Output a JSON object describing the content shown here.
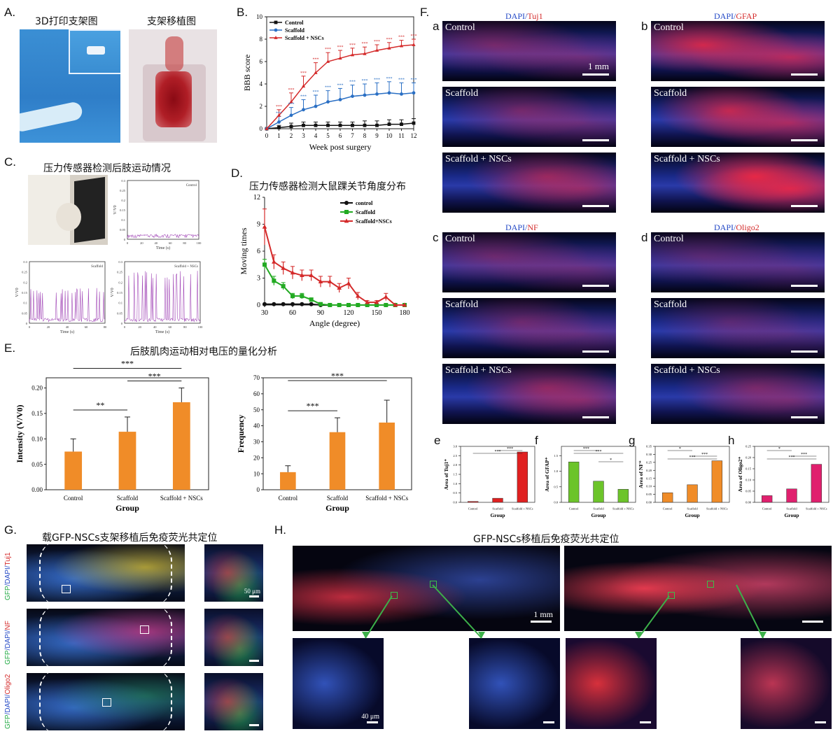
{
  "panelA": {
    "label": "A.",
    "photo1_title": "3D打印支架图",
    "photo2_title": "支架移植图"
  },
  "panelB": {
    "label": "B.",
    "chart_data": {
      "type": "line",
      "xlabel": "Week post surgery",
      "ylabel": "BBB score",
      "xlim": [
        0,
        12
      ],
      "ylim": [
        0,
        10
      ],
      "xticks": [
        0,
        1,
        2,
        3,
        4,
        5,
        6,
        7,
        8,
        9,
        10,
        11,
        12
      ],
      "yticks": [
        0,
        2,
        4,
        6,
        8,
        10
      ],
      "legend_position": "top-left",
      "x": [
        0,
        1,
        2,
        3,
        4,
        5,
        6,
        7,
        8,
        9,
        10,
        11,
        12
      ],
      "series": [
        {
          "name": "Control",
          "color": "#111111",
          "marker": "square",
          "values": [
            0,
            0.1,
            0.2,
            0.3,
            0.3,
            0.3,
            0.3,
            0.3,
            0.3,
            0.3,
            0.4,
            0.4,
            0.5
          ],
          "err": [
            0,
            0.2,
            0.3,
            0.3,
            0.3,
            0.3,
            0.3,
            0.3,
            0.4,
            0.4,
            0.4,
            0.4,
            0.4
          ]
        },
        {
          "name": "Scaffold",
          "color": "#2a6fc4",
          "marker": "circle",
          "values": [
            0,
            0.6,
            1.2,
            1.7,
            2.0,
            2.4,
            2.6,
            2.9,
            3.0,
            3.1,
            3.2,
            3.1,
            3.2
          ],
          "err": [
            0,
            0.5,
            0.7,
            0.9,
            1.0,
            1.0,
            1.0,
            1.0,
            1.0,
            1.0,
            1.0,
            1.0,
            0.9
          ]
        },
        {
          "name": "Scaffold + NSCs",
          "color": "#d42a2a",
          "marker": "triangle",
          "values": [
            0,
            1.2,
            2.4,
            3.8,
            5.0,
            6.0,
            6.3,
            6.6,
            6.7,
            7.0,
            7.2,
            7.4,
            7.5
          ],
          "err": [
            0,
            0.5,
            0.8,
            0.9,
            0.9,
            0.8,
            0.7,
            0.6,
            0.6,
            0.5,
            0.5,
            0.5,
            0.5
          ]
        }
      ]
    }
  },
  "panelC": {
    "label": "C.",
    "title": "压力传感器检测后肢运动情况",
    "axis_x": "Time (s)",
    "axis_y": "V/V0",
    "plots": [
      {
        "name": "Control",
        "yticks": [
          "0.3",
          "0.25",
          "0.2",
          "0.15",
          "0.1",
          "0.05",
          "0"
        ],
        "xticks": [
          "0",
          "20",
          "40",
          "60",
          "80",
          "100"
        ]
      },
      {
        "name": "Scaffold",
        "yticks": [
          "0.3",
          "0.25",
          "0.2",
          "0.15",
          "0.1",
          "0.05",
          "0"
        ],
        "xticks": [
          "0",
          "20",
          "40",
          "60",
          "80"
        ]
      },
      {
        "name": "Scaffold + NSCs",
        "yticks": [
          "0.3",
          "0.25",
          "0.2",
          "0.15",
          "0.1",
          "0.05",
          "0"
        ],
        "xticks": [
          "0",
          "20",
          "40",
          "60",
          "80",
          "100"
        ]
      }
    ]
  },
  "panelD": {
    "label": "D.",
    "title": "压力传感器检测大鼠踝关节角度分布",
    "chart_data": {
      "type": "line",
      "xlabel": "Angle (degree)",
      "ylabel": "Moving times",
      "xlim": [
        30,
        180
      ],
      "ylim": [
        0,
        12
      ],
      "xticks": [
        30,
        60,
        90,
        120,
        150,
        180
      ],
      "yticks": [
        0,
        3,
        6,
        9,
        12
      ],
      "legend_position": "top-right",
      "x": [
        30,
        40,
        50,
        60,
        70,
        80,
        90,
        100,
        110,
        120,
        130,
        140,
        150,
        160,
        170,
        180
      ],
      "series": [
        {
          "name": "control",
          "color": "#111111",
          "marker": "circle",
          "values": [
            0.1,
            0.1,
            0.1,
            0.1,
            0.1,
            0.1,
            0,
            0,
            0,
            0,
            0,
            0,
            0,
            0,
            0,
            0
          ]
        },
        {
          "name": "Scaffold",
          "color": "#22aa22",
          "marker": "square",
          "values": [
            4.5,
            2.7,
            2.1,
            1.0,
            1.0,
            0.6,
            0.1,
            0,
            0,
            0,
            0,
            0,
            0,
            0,
            0,
            0
          ],
          "err": [
            0.6,
            0.5,
            0.4,
            0.3,
            0.3,
            0.2,
            0.1,
            0,
            0,
            0,
            0,
            0,
            0,
            0,
            0,
            0
          ]
        },
        {
          "name": "Scaffold+NSCs",
          "color": "#d42a2a",
          "marker": "triangle",
          "values": [
            8.7,
            4.8,
            4.1,
            3.6,
            3.3,
            3.3,
            2.6,
            2.6,
            1.9,
            2.4,
            1.0,
            0.3,
            0.3,
            0.9,
            0,
            0
          ],
          "err": [
            2.0,
            0.8,
            0.7,
            0.7,
            0.6,
            0.6,
            0.6,
            0.6,
            0.5,
            0.6,
            0.4,
            0.2,
            0.2,
            0.4,
            0,
            0
          ]
        }
      ]
    }
  },
  "panelE": {
    "label": "E.",
    "title": "后肢肌肉运动相对电压的量化分析",
    "chart_data": [
      {
        "type": "bar",
        "categories": [
          "Control",
          "Scaffold",
          "Scaffold + NSCs"
        ],
        "values": [
          0.075,
          0.114,
          0.172
        ],
        "err": [
          0.025,
          0.029,
          0.028
        ],
        "ylabel": "Intensity (V/V0)",
        "xlabel": "Group",
        "ylim": [
          0,
          0.22
        ],
        "yticks": [
          "0.00",
          "0.05",
          "0.10",
          "0.15",
          "0.20"
        ],
        "ytick_values": [
          0,
          0.05,
          0.1,
          0.15,
          0.2
        ],
        "color": "#f08c28",
        "significance": [
          {
            "from": 0,
            "to": 1,
            "text": "**"
          },
          {
            "from": 1,
            "to": 2,
            "text": "***"
          },
          {
            "from": 0,
            "to": 2,
            "text": "***"
          }
        ]
      },
      {
        "type": "bar",
        "categories": [
          "Control",
          "Scaffold",
          "Scaffold + NSCs"
        ],
        "values": [
          11,
          36,
          42
        ],
        "err": [
          4,
          9,
          14
        ],
        "ylabel": "Frequency",
        "xlabel": "Group",
        "ylim": [
          0,
          70
        ],
        "yticks": [
          "0",
          "10",
          "20",
          "30",
          "40",
          "50",
          "60",
          "70"
        ],
        "ytick_values": [
          0,
          10,
          20,
          30,
          40,
          50,
          60,
          70
        ],
        "color": "#f08c28",
        "significance": [
          {
            "from": 0,
            "to": 1,
            "text": "***"
          },
          {
            "from": 0,
            "to": 2,
            "text": "***"
          }
        ]
      }
    ]
  },
  "panelF": {
    "label": "F.",
    "blocks": [
      {
        "letter": "a",
        "stain_a": "DAPI",
        "slash": "/",
        "stain_b": "Tuj1",
        "scale": "1 mm"
      },
      {
        "letter": "b",
        "stain_a": "DAPI",
        "slash": "/",
        "stain_b": "GFAP"
      },
      {
        "letter": "c",
        "stain_a": "DAPI",
        "slash": "/",
        "stain_b": "NF"
      },
      {
        "letter": "d",
        "stain_a": "DAPI",
        "slash": "/",
        "stain_b": "Oligo2"
      }
    ],
    "rows": [
      "Control",
      "Scaffold",
      "Scaffold + NSCs"
    ],
    "quant": [
      {
        "letter": "e",
        "ylabel": "Area of Tuj1⁺",
        "xlabel": "Group",
        "categories": [
          "Control",
          "Scaffold",
          "Scaffold + NSCs"
        ],
        "values": [
          0.05,
          0.22,
          2.7
        ],
        "ylim": [
          0,
          3.0
        ],
        "yticks": [
          "0.0",
          "0.5",
          "1.0",
          "1.5",
          "2.0",
          "2.5",
          "3.0"
        ],
        "ytick_values": [
          0,
          0.5,
          1,
          1.5,
          2,
          2.5,
          3
        ],
        "color": "#e02020",
        "sig": [
          "***",
          "***"
        ]
      },
      {
        "letter": "f",
        "ylabel": "Area of GFAP⁺",
        "xlabel": "Group",
        "categories": [
          "Control",
          "Scaffold",
          "Scaffold + NSCs"
        ],
        "values": [
          1.3,
          0.68,
          0.42
        ],
        "ylim": [
          0,
          1.8
        ],
        "yticks": [
          "0.0",
          "0.5",
          "1.0",
          "1.5"
        ],
        "ytick_values": [
          0,
          0.5,
          1.0,
          1.5
        ],
        "color": "#6cc42a",
        "sig": [
          "***",
          "***",
          "*"
        ]
      },
      {
        "letter": "g",
        "ylabel": "Area of NF⁺",
        "xlabel": "Group",
        "categories": [
          "Control",
          "Scaffold",
          "Scaffold + NSCs"
        ],
        "values": [
          0.06,
          0.11,
          0.26
        ],
        "ylim": [
          0,
          0.35
        ],
        "yticks": [
          "0.00",
          "0.05",
          "0.10",
          "0.15",
          "0.20",
          "0.25",
          "0.30",
          "0.35"
        ],
        "ytick_values": [
          0,
          0.05,
          0.1,
          0.15,
          0.2,
          0.25,
          0.3,
          0.35
        ],
        "color": "#f08c28",
        "sig": [
          "*",
          "***",
          "***"
        ]
      },
      {
        "letter": "h",
        "ylabel": "Area of Oligo2⁺",
        "xlabel": "Group",
        "categories": [
          "Control",
          "Scaffold",
          "Scaffold + NSCs"
        ],
        "values": [
          0.03,
          0.06,
          0.17
        ],
        "ylim": [
          0,
          0.25
        ],
        "yticks": [
          "0.00",
          "0.05",
          "0.10",
          "0.15",
          "0.20",
          "0.25"
        ],
        "ytick_values": [
          0,
          0.05,
          0.1,
          0.15,
          0.2,
          0.25
        ],
        "color": "#e0206e",
        "sig": [
          "*",
          "***",
          "***"
        ]
      }
    ]
  },
  "panelG": {
    "label": "G.",
    "title": "载GFP-NSCs支架移植后免疫荧光共定位",
    "rows": [
      {
        "g": "GFP",
        "sep1": "/",
        "d": "DAPI",
        "sep2": "/",
        "m": "Tuj1"
      },
      {
        "g": "GFP",
        "sep1": "/",
        "d": "DAPI",
        "sep2": "/",
        "m": "NF"
      },
      {
        "g": "GFP",
        "sep1": "/",
        "d": "DAPI",
        "sep2": "/",
        "m": "Oligo2"
      }
    ],
    "scale": "50 μm"
  },
  "panelH": {
    "label": "H.",
    "title": "GFP-NSCs移植后免疫荧光共定位",
    "scale_large": "1 mm",
    "scale_small": "40 μm"
  }
}
